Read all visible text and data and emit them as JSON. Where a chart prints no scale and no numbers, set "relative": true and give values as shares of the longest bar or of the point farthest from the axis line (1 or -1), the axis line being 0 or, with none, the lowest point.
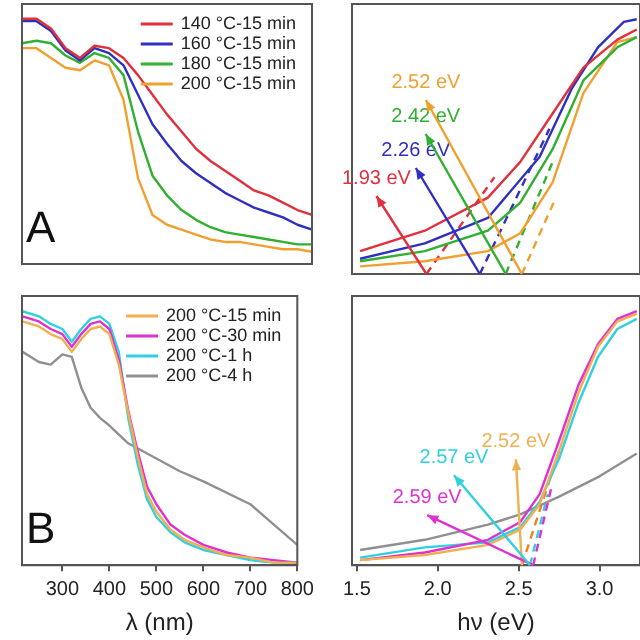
{
  "chart_data": [
    {
      "type": "line",
      "relative": true,
      "marker": "none",
      "legend": "top right",
      "tick_labels": false,
      "annotations": [
        "A"
      ],
      "categories": [
        null,
        null,
        null,
        null,
        null,
        null,
        null,
        null,
        null,
        null,
        null,
        null,
        null,
        null,
        null,
        null,
        null,
        null,
        null,
        null,
        null
      ],
      "series": [
        {
          "name": "140 °C-15 min",
          "color": "#e0303c",
          "values": [
            1.0,
            1.0,
            0.96,
            0.88,
            0.84,
            0.89,
            0.88,
            0.84,
            0.77,
            0.69,
            0.61,
            0.54,
            0.47,
            0.42,
            0.38,
            0.34,
            0.3,
            0.28,
            0.25,
            0.22,
            0.2
          ]
        },
        {
          "name": "160 °C-15 min",
          "color": "#3030c0",
          "values": [
            0.99,
            0.99,
            0.95,
            0.87,
            0.83,
            0.88,
            0.86,
            0.81,
            0.69,
            0.57,
            0.49,
            0.42,
            0.37,
            0.33,
            0.29,
            0.26,
            0.23,
            0.21,
            0.19,
            0.16,
            0.14
          ]
        },
        {
          "name": "180 °C-15 min",
          "color": "#30b030",
          "values": [
            0.9,
            0.91,
            0.9,
            0.85,
            0.82,
            0.86,
            0.84,
            0.77,
            0.54,
            0.36,
            0.28,
            0.22,
            0.18,
            0.15,
            0.13,
            0.12,
            0.11,
            0.1,
            0.09,
            0.08,
            0.08
          ]
        },
        {
          "name": "200 °C-15 min",
          "color": "#f0a030",
          "values": [
            0.88,
            0.88,
            0.84,
            0.8,
            0.79,
            0.83,
            0.81,
            0.67,
            0.35,
            0.2,
            0.16,
            0.14,
            0.12,
            0.1,
            0.09,
            0.09,
            0.08,
            0.07,
            0.06,
            0.06,
            0.05
          ]
        }
      ]
    },
    {
      "type": "line",
      "relative": true,
      "marker": "none",
      "legend": "top right",
      "tick_labels": "x",
      "annotations": [
        "B"
      ],
      "xlabel": "λ (nm)",
      "xlim": [
        214,
        800
      ],
      "xticks": [
        300,
        400,
        500,
        600,
        700,
        800
      ],
      "x": [
        215,
        250,
        275,
        300,
        320,
        340,
        360,
        380,
        400,
        420,
        440,
        460,
        480,
        500,
        530,
        560,
        600,
        650,
        700,
        750,
        800
      ],
      "series": [
        {
          "name": "200 °C-15 min",
          "color": "#f0b050",
          "values": [
            0.96,
            0.94,
            0.91,
            0.89,
            0.84,
            0.89,
            0.93,
            0.94,
            0.91,
            0.79,
            0.6,
            0.43,
            0.28,
            0.21,
            0.14,
            0.1,
            0.07,
            0.04,
            0.03,
            0.01,
            0.01
          ]
        },
        {
          "name": "200 °C-30 min",
          "color": "#e030d0",
          "values": [
            0.98,
            0.96,
            0.93,
            0.91,
            0.86,
            0.91,
            0.95,
            0.96,
            0.93,
            0.81,
            0.61,
            0.45,
            0.31,
            0.24,
            0.16,
            0.12,
            0.08,
            0.05,
            0.03,
            0.02,
            0.01
          ]
        },
        {
          "name": "200 °C-1 h",
          "color": "#30d0e0",
          "values": [
            1.0,
            0.98,
            0.95,
            0.93,
            0.88,
            0.93,
            0.97,
            0.98,
            0.95,
            0.84,
            0.58,
            0.4,
            0.26,
            0.19,
            0.13,
            0.09,
            0.06,
            0.04,
            0.02,
            0.01,
            0.01
          ]
        },
        {
          "name": "200 °C-4 h",
          "color": "#909090",
          "x": [
            215,
            250,
            275,
            300,
            320,
            340,
            360,
            380,
            400,
            440,
            500,
            550,
            600,
            700,
            800
          ],
          "values": [
            0.84,
            0.8,
            0.79,
            0.83,
            0.82,
            0.7,
            0.62,
            0.58,
            0.55,
            0.48,
            0.42,
            0.37,
            0.33,
            0.24,
            0.08
          ]
        }
      ]
    },
    {
      "type": "line",
      "relative": true,
      "marker": "none",
      "tick_labels": false,
      "xlim": [
        1.47,
        3.25
      ],
      "annotations": [
        {
          "text": "1.93 eV",
          "x": 1.93,
          "y": 0
        },
        {
          "text": "2.26 eV",
          "x": 2.26,
          "y": 0
        },
        {
          "text": "2.42 eV",
          "x": 2.42,
          "y": 0
        },
        {
          "text": "2.52 eV",
          "x": 2.52,
          "y": 0
        }
      ],
      "x": [
        1.52,
        1.92,
        2.31,
        2.51,
        2.71,
        2.9,
        3.11,
        3.23
      ],
      "series": [
        {
          "color": "#e0303c",
          "values": [
            0.09,
            0.17,
            0.3,
            0.44,
            0.63,
            0.81,
            0.92,
            0.96
          ]
        },
        {
          "color": "#3030c0",
          "x": [
            1.52,
            1.92,
            2.31,
            2.63,
            2.83,
            2.99,
            3.15,
            3.23
          ],
          "values": [
            0.06,
            0.12,
            0.22,
            0.46,
            0.73,
            0.89,
            0.99,
            1.0
          ]
        },
        {
          "color": "#30b030",
          "values": [
            0.05,
            0.09,
            0.17,
            0.28,
            0.49,
            0.76,
            0.89,
            0.93
          ]
        },
        {
          "color": "#f0a030",
          "values": [
            0.03,
            0.05,
            0.09,
            0.16,
            0.36,
            0.71,
            0.91,
            0.93
          ]
        },
        {
          "color": "#e0303c",
          "line_style": "dashed",
          "x": [
            1.93,
            2.35
          ],
          "values": [
            0,
            0.38
          ]
        },
        {
          "color": "#3030c0",
          "line_style": "dashed",
          "x": [
            2.26,
            2.69
          ],
          "values": [
            0,
            0.57
          ]
        },
        {
          "color": "#30b030",
          "line_style": "dashed",
          "x": [
            2.42,
            2.71
          ],
          "values": [
            0,
            0.44
          ]
        },
        {
          "color": "#f0a030",
          "line_style": "dashed",
          "x": [
            2.52,
            2.73
          ],
          "values": [
            0,
            0.3
          ]
        }
      ]
    },
    {
      "type": "line",
      "relative": true,
      "marker": "none",
      "tick_labels": "x",
      "xlabel": "hν (eV)",
      "xlim": [
        1.47,
        3.25
      ],
      "xticks": [
        1.5,
        {
          "value": 2,
          "label": "2.0"
        },
        2.5,
        {
          "value": 3,
          "label": "3.0"
        }
      ],
      "annotations": [
        {
          "text": "2.52 eV",
          "x": 2.52,
          "y": 0
        },
        {
          "text": "2.59 eV",
          "x": 2.59,
          "y": 0
        },
        {
          "text": "2.57 eV",
          "x": 2.57,
          "y": 0
        }
      ],
      "x": [
        1.52,
        1.92,
        2.31,
        2.51,
        2.63,
        2.75,
        2.87,
        2.99,
        3.11,
        3.23
      ],
      "series": [
        {
          "color": "#f0b050",
          "values": [
            0.02,
            0.04,
            0.08,
            0.14,
            0.24,
            0.45,
            0.68,
            0.86,
            0.96,
            0.99
          ]
        },
        {
          "color": "#e030d0",
          "values": [
            0.02,
            0.05,
            0.1,
            0.17,
            0.28,
            0.49,
            0.71,
            0.87,
            0.97,
            1.0
          ]
        },
        {
          "color": "#30d0e0",
          "values": [
            0.03,
            0.07,
            0.09,
            0.15,
            0.25,
            0.42,
            0.64,
            0.82,
            0.93,
            0.97
          ]
        },
        {
          "color": "#909090",
          "x": [
            1.52,
            1.92,
            2.31,
            2.51,
            2.75,
            3.0,
            3.23
          ],
          "values": [
            0.06,
            0.1,
            0.16,
            0.2,
            0.27,
            0.35,
            0.44
          ]
        },
        {
          "color": "#f08020",
          "line_style": "dashed",
          "x": [
            2.52,
            2.75
          ],
          "values": [
            0,
            0.45
          ]
        },
        {
          "color": "#e030d0",
          "line_style": "dashed",
          "x": [
            2.59,
            2.7
          ],
          "values": [
            0,
            0.3
          ]
        },
        {
          "color": "#30d0e0",
          "line_style": "dashed",
          "x": [
            2.57,
            2.68
          ],
          "values": [
            0,
            0.28
          ]
        }
      ]
    }
  ]
}
